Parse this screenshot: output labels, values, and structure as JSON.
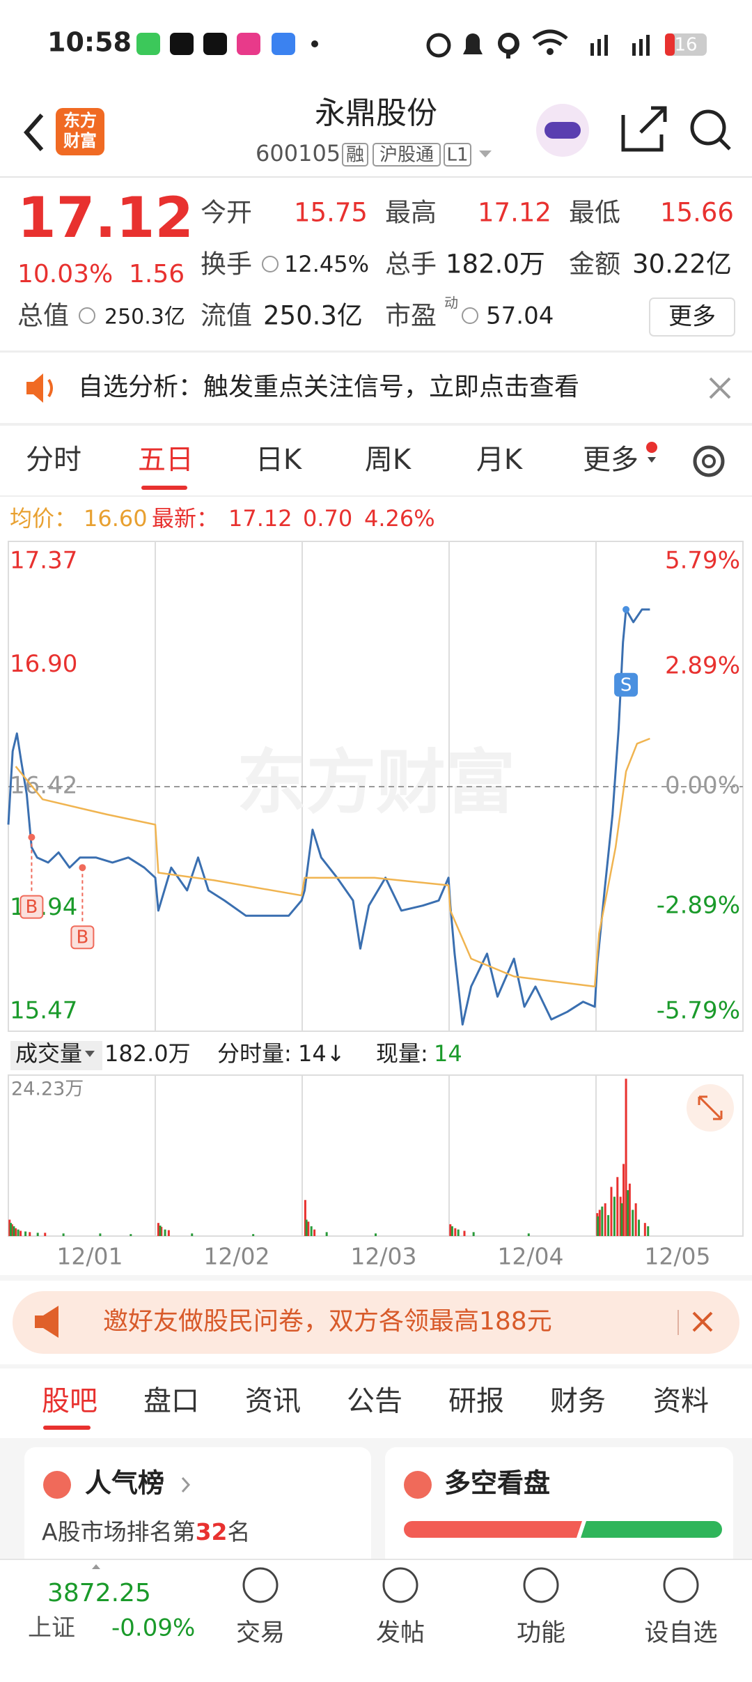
{
  "status_bar": {
    "time": "10:58",
    "battery": "16"
  },
  "header": {
    "logo": [
      "东方",
      "财富"
    ],
    "name": "永鼎股份",
    "code": "600105",
    "tags": [
      "融",
      "沪股通",
      "L1"
    ]
  },
  "quote": {
    "price": "17.12",
    "change_pct": "10.03%",
    "change": "1.56",
    "fields": [
      {
        "label": "今开",
        "value": "15.75"
      },
      {
        "label": "最高",
        "value": "17.12"
      },
      {
        "label": "最低",
        "value": "15.66"
      },
      {
        "label": "换手",
        "value": "12.45%"
      },
      {
        "label": "总手",
        "value": "182.0万"
      },
      {
        "label": "金额",
        "value": "30.22亿"
      },
      {
        "label": "总值",
        "value": "250.3亿"
      },
      {
        "label": "流值",
        "value": "250.3亿"
      },
      {
        "label": "市盈",
        "super": "动",
        "value": "57.04"
      }
    ],
    "more": "更多"
  },
  "notice": "自选分析：触发重点关注信号，立即点击查看",
  "period_tabs": [
    "分时",
    "五日",
    "日K",
    "周K",
    "月K",
    "更多"
  ],
  "chart_info": {
    "avg_label": "均价：",
    "avg": "16.60",
    "latest_label": "最新：",
    "latest": "17.12",
    "change": "0.70",
    "change_pct": "4.26%"
  },
  "chart_data": [
    {
      "type": "line",
      "watermark": "东方财富",
      "xlim": [
        0,
        1200
      ],
      "ylim": [
        15.47,
        17.37
      ],
      "yticks": [
        17.37,
        {
          "value": 16.9,
          "label": "16.90"
        },
        16.42,
        15.94,
        15.47
      ],
      "y2lim": [
        -5.79,
        5.79
      ],
      "y2ticks": [
        {
          "value": 5.79,
          "label": "5.79%"
        },
        {
          "value": 2.89,
          "label": "2.89%"
        },
        {
          "value": 0,
          "label": "0.00%"
        },
        {
          "value": -2.89,
          "label": "-2.89%"
        },
        {
          "value": -5.79,
          "label": "-5.79%"
        }
      ],
      "series": [
        {
          "color": "#3a6fb0",
          "x": [
            0,
            7,
            14,
            21,
            30,
            38,
            47,
            65,
            82,
            100,
            117,
            143,
            170,
            196,
            222,
            240,
            245,
            266,
            292,
            310,
            327,
            353,
            388,
            423,
            458,
            479,
            484,
            497,
            511,
            537,
            563,
            575,
            589,
            616,
            642,
            677,
            703,
            719,
            722,
            729,
            742,
            756,
            782,
            799,
            826,
            843,
            861,
            887,
            913,
            939,
            958,
            962,
            974,
            987,
            997,
            1004,
            1009,
            1021,
            1035,
            1048
          ],
          "values": [
            16.27,
            16.56,
            16.63,
            16.52,
            16.39,
            16.18,
            16.14,
            16.12,
            16.16,
            16.1,
            16.14,
            16.14,
            16.12,
            16.14,
            16.1,
            16.06,
            15.93,
            16.1,
            16.01,
            16.14,
            16.01,
            15.97,
            15.91,
            15.91,
            15.91,
            15.97,
            16.01,
            16.25,
            16.14,
            16.06,
            15.97,
            15.78,
            15.95,
            16.06,
            15.93,
            15.95,
            15.97,
            16.06,
            15.95,
            15.76,
            15.48,
            15.63,
            15.76,
            15.59,
            15.74,
            15.55,
            15.63,
            15.5,
            15.53,
            15.57,
            15.55,
            15.72,
            16.01,
            16.31,
            16.65,
            16.99,
            17.12,
            17.07,
            17.12,
            17.12
          ]
        },
        {
          "color": "#f0b450",
          "x": [
            12,
            56,
            161,
            240,
            245,
            336,
            479,
            484,
            598,
            719,
            722,
            756,
            826,
            958,
            965,
            992,
            1009,
            1027,
            1048
          ],
          "values": [
            16.5,
            16.37,
            16.31,
            16.27,
            16.08,
            16.05,
            15.99,
            16.06,
            16.06,
            16.03,
            15.93,
            15.74,
            15.67,
            15.63,
            15.84,
            16.18,
            16.48,
            16.59,
            16.61
          ]
        }
      ],
      "annotations": [
        {
          "text": "B",
          "x": 38,
          "y": 16.22
        },
        {
          "text": "B",
          "x": 121,
          "y": 16.1
        },
        {
          "text": "S",
          "x": 1009,
          "y": 17.12
        }
      ]
    },
    {
      "type": "bar",
      "xlim": [
        0,
        1200
      ],
      "ylim": [
        0,
        24.23
      ],
      "yticks": [
        {
          "value": 24.23,
          "label": "24.23万"
        }
      ],
      "xticks": [
        {
          "value": 133,
          "label": "12/01"
        },
        {
          "value": 373,
          "label": "12/02"
        },
        {
          "value": 613,
          "label": "12/03"
        },
        {
          "value": 853,
          "label": "12/04"
        },
        {
          "value": 1093,
          "label": "12/05"
        }
      ],
      "series": [
        {
          "color": "#e8312f",
          "x": [
            2,
            6,
            12,
            20,
            35,
            60,
            245,
            250,
            262,
            485,
            490,
            500,
            722,
            730,
            745,
            962,
            966,
            975,
            985,
            995,
            1000,
            1005,
            1009,
            1015,
            1025,
            1040
          ],
          "values": [
            2.5,
            1.8,
            1.2,
            0.8,
            0.6,
            0.5,
            2.0,
            1.4,
            0.9,
            5.5,
            2.2,
            1.0,
            1.8,
            1.2,
            0.8,
            3.5,
            4.0,
            5.0,
            7.5,
            9.0,
            6.0,
            11.0,
            24.0,
            8.0,
            5.0,
            2.0
          ]
        },
        {
          "color": "#2a9a3a",
          "x": [
            4,
            9,
            16,
            28,
            48,
            90,
            150,
            200,
            248,
            256,
            300,
            400,
            487,
            495,
            520,
            600,
            725,
            735,
            760,
            850,
            963,
            970,
            980,
            990,
            1002,
            1012,
            1020,
            1030,
            1045
          ],
          "values": [
            2.0,
            1.5,
            1.0,
            0.7,
            0.5,
            0.4,
            0.4,
            0.3,
            1.6,
            1.0,
            0.4,
            0.3,
            2.5,
            1.5,
            0.6,
            0.4,
            1.5,
            1.0,
            0.6,
            0.4,
            3.0,
            4.5,
            3.2,
            6.0,
            5.0,
            7.0,
            4.0,
            2.5,
            1.5
          ]
        }
      ]
    }
  ],
  "volume_bar": {
    "label": "成交量",
    "total": "182.0万",
    "tick_label": "分时量:",
    "tick_value": "14↓",
    "now_label": "现量:",
    "now_value": "14"
  },
  "ad": "邀好友做股民问卷，双方各领最高188元",
  "content_tabs": [
    "股吧",
    "盘口",
    "资讯",
    "公告",
    "研报",
    "财务",
    "资料"
  ],
  "cards": [
    {
      "title": "人气榜",
      "text_pre": "A股市场排名第",
      "rank": "32",
      "text_post": "名"
    },
    {
      "title": "多空看盘"
    }
  ],
  "bottom_nav": {
    "index_value": "3872.25",
    "index_name": "上证",
    "index_change": "-0.09%",
    "items": [
      "交易",
      "发帖",
      "功能",
      "设自选"
    ]
  }
}
